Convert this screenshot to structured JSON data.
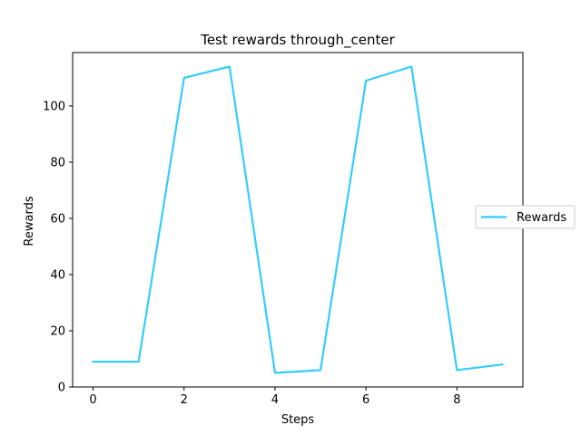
{
  "chart_data": {
    "type": "line",
    "title": "Test rewards through_center",
    "xlabel": "Steps",
    "ylabel": "Rewards",
    "x": [
      0,
      1,
      2,
      3,
      4,
      5,
      6,
      7,
      8,
      9
    ],
    "series": [
      {
        "name": "Rewards",
        "color": "#33ccff",
        "values": [
          9,
          9,
          110,
          114,
          5,
          6,
          109,
          114,
          6,
          8
        ]
      }
    ],
    "xlim": [
      -0.45,
      9.45
    ],
    "ylim": [
      0,
      119
    ],
    "xticks": [
      0,
      2,
      4,
      6,
      8
    ],
    "yticks": [
      0,
      20,
      40,
      60,
      80,
      100
    ],
    "xtick_labels": [
      "0",
      "2",
      "4",
      "6",
      "8"
    ],
    "ytick_labels": [
      "0",
      "20",
      "40",
      "60",
      "80",
      "100"
    ],
    "grid": false,
    "legend_position": "center-right"
  }
}
